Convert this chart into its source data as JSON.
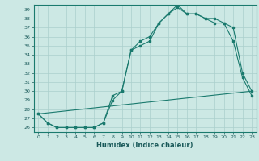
{
  "title": "",
  "xlabel": "Humidex (Indice chaleur)",
  "ylabel": "",
  "bg_color": "#cce8e4",
  "grid_color": "#aacfcc",
  "line_color": "#1a7a6e",
  "xlim": [
    -0.5,
    23.5
  ],
  "ylim": [
    25.5,
    39.5
  ],
  "yticks": [
    26,
    27,
    28,
    29,
    30,
    31,
    32,
    33,
    34,
    35,
    36,
    37,
    38,
    39
  ],
  "xticks": [
    0,
    1,
    2,
    3,
    4,
    5,
    6,
    7,
    8,
    9,
    10,
    11,
    12,
    13,
    14,
    15,
    16,
    17,
    18,
    19,
    20,
    21,
    22,
    23
  ],
  "series1_x": [
    0,
    1,
    2,
    3,
    4,
    5,
    6,
    7,
    8,
    9,
    10,
    11,
    12,
    13,
    14,
    15,
    16,
    17,
    18,
    19,
    20,
    21,
    22,
    23
  ],
  "series1_y": [
    27.5,
    26.5,
    26.0,
    26.0,
    26.0,
    26.0,
    26.0,
    26.5,
    29.5,
    30.0,
    34.5,
    35.0,
    35.5,
    37.5,
    38.5,
    39.2,
    38.5,
    38.5,
    38.0,
    37.5,
    37.5,
    35.5,
    31.5,
    29.5
  ],
  "series2_x": [
    0,
    1,
    2,
    3,
    4,
    5,
    6,
    7,
    8,
    9,
    10,
    11,
    12,
    13,
    14,
    15,
    16,
    17,
    18,
    19,
    20,
    21,
    22,
    23
  ],
  "series2_y": [
    27.5,
    26.5,
    26.0,
    26.0,
    26.0,
    26.0,
    26.0,
    26.5,
    29.0,
    30.0,
    34.5,
    35.5,
    36.0,
    37.5,
    38.5,
    39.5,
    38.5,
    38.5,
    38.0,
    38.0,
    37.5,
    37.0,
    32.0,
    30.0
  ],
  "series3_x": [
    0,
    23
  ],
  "series3_y": [
    27.5,
    30.0
  ]
}
